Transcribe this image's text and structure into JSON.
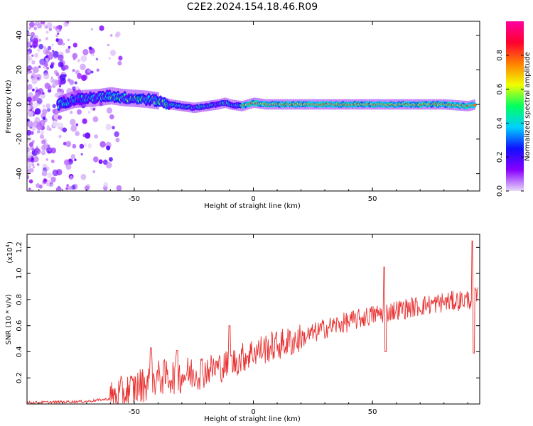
{
  "title": "C2E2.2024.154.18.46.R09",
  "chart_data": [
    {
      "type": "heatmap",
      "xlabel": "Height of straight line (km)",
      "ylabel": "Frequency (Hz)",
      "xlim": [
        -95,
        95
      ],
      "ylim": [
        -50,
        48
      ],
      "xticks": [
        -50,
        0,
        50
      ],
      "yticks": [
        -40,
        -20,
        0,
        20,
        40
      ],
      "colorbar": {
        "label": "Normalized spectral amplitude",
        "range": [
          0,
          1
        ],
        "ticks": [
          "0.0",
          "0.2",
          "0.4",
          "0.6",
          "0.8"
        ],
        "colormap": [
          "#e8d8f8",
          "#8800ff",
          "#1010ff",
          "#00d0ff",
          "#00ff60",
          "#f0ff00",
          "#ff8000",
          "#ff0030",
          "#ff00a0"
        ]
      },
      "ridge_frequency_hz": {
        "x": [
          -82,
          -75,
          -65,
          -60,
          -55,
          -45,
          -40,
          -35,
          -30,
          -25,
          -20,
          -15,
          -12,
          -10,
          -5,
          0,
          5,
          10,
          20,
          30,
          40,
          50,
          60,
          70,
          80,
          90,
          93
        ],
        "y": [
          0,
          3,
          4,
          5,
          4,
          3,
          2,
          0,
          -1,
          -2,
          -1,
          0,
          1,
          0,
          -1,
          1,
          0,
          0,
          0,
          0,
          0,
          0,
          0,
          0,
          0,
          -1,
          0
        ]
      },
      "noise_region_hz": {
        "x_range": [
          -95,
          -55
        ],
        "y_range": [
          -50,
          48
        ]
      }
    },
    {
      "type": "line",
      "xlabel": "Height of straight line (km)",
      "ylabel": "SNR (10 * v/v)",
      "multiplier_label": "(x10",
      "multiplier_exp": "4",
      "ylabel_close": ")",
      "xlim": [
        -95,
        95
      ],
      "ylim": [
        0,
        1.3
      ],
      "xticks": [
        -50,
        0,
        50
      ],
      "yticks": [
        0.2,
        0.4,
        0.6,
        0.8,
        1.0,
        1.2
      ],
      "ytick_labels": [
        "0.2",
        "0.4",
        "0.6",
        "0.8",
        "1.0",
        "1.2"
      ],
      "color": "#e83030",
      "trend": {
        "x": [
          -95,
          -70,
          -60,
          -50,
          -40,
          -30,
          -20,
          -10,
          0,
          10,
          20,
          30,
          40,
          50,
          60,
          70,
          80,
          90,
          94
        ],
        "y": [
          0.01,
          0.02,
          0.04,
          0.12,
          0.2,
          0.22,
          0.26,
          0.3,
          0.4,
          0.45,
          0.5,
          0.58,
          0.63,
          0.68,
          0.72,
          0.75,
          0.78,
          0.8,
          0.82
        ]
      },
      "peaks": [
        {
          "x": -43,
          "y": 0.43
        },
        {
          "x": -32,
          "y": 0.41
        },
        {
          "x": -10,
          "y": 0.6
        },
        {
          "x": 55,
          "y": 1.05
        },
        {
          "x": 92,
          "y": 1.25
        }
      ],
      "troughs": [
        {
          "x": 55.5,
          "y": 0.4
        },
        {
          "x": 92.5,
          "y": 0.39
        }
      ]
    }
  ]
}
